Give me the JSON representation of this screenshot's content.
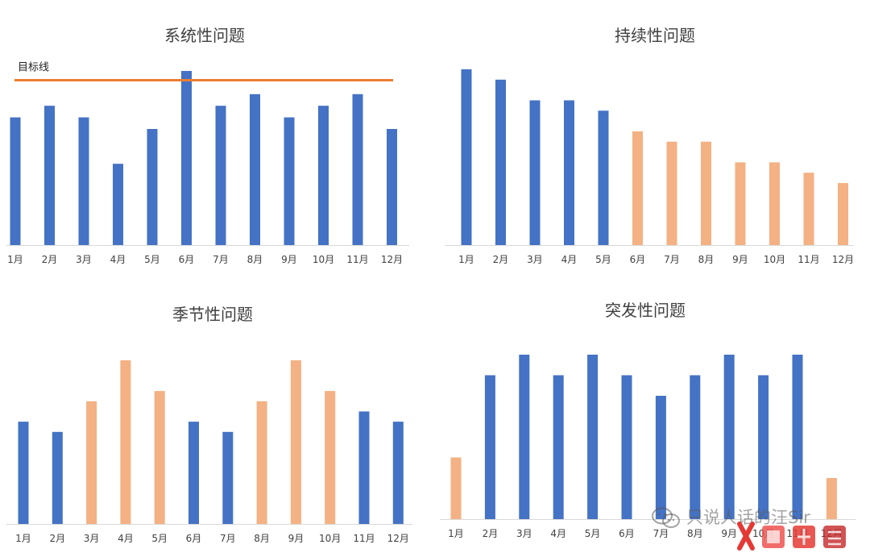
{
  "colors": {
    "blue": "#4472C4",
    "orange": "#F4B183",
    "target_line": "#ED7D31",
    "axis": "#D9D9D9",
    "text": "#404040"
  },
  "chart_data": [
    {
      "type": "bar",
      "title": "系统性问题",
      "categories": [
        "1月",
        "2月",
        "3月",
        "4月",
        "5月",
        "6月",
        "7月",
        "8月",
        "9月",
        "10月",
        "11月",
        "12月"
      ],
      "values": [
        11,
        12,
        11,
        7,
        10,
        15,
        12,
        13,
        11,
        12,
        13,
        10
      ],
      "colors": [
        "blue",
        "blue",
        "blue",
        "blue",
        "blue",
        "blue",
        "blue",
        "blue",
        "blue",
        "blue",
        "blue",
        "blue"
      ],
      "ylim": [
        0,
        15
      ],
      "target_line": {
        "label": "目标线",
        "value": 14.2
      },
      "legend": "none",
      "grid": false
    },
    {
      "type": "bar",
      "title": "持续性问题",
      "categories": [
        "1月",
        "2月",
        "3月",
        "4月",
        "5月",
        "6月",
        "7月",
        "8月",
        "9月",
        "10月",
        "11月",
        "12月"
      ],
      "values": [
        17,
        16,
        14,
        14,
        13,
        11,
        10,
        10,
        8,
        8,
        7,
        6
      ],
      "colors": [
        "blue",
        "blue",
        "blue",
        "blue",
        "blue",
        "orange",
        "orange",
        "orange",
        "orange",
        "orange",
        "orange",
        "orange"
      ],
      "ylim": [
        0,
        17
      ],
      "legend": "none",
      "grid": false
    },
    {
      "type": "bar",
      "title": "季节性问题",
      "categories": [
        "1月",
        "2月",
        "3月",
        "4月",
        "5月",
        "6月",
        "7月",
        "8月",
        "9月",
        "10月",
        "11月",
        "12月"
      ],
      "values": [
        10,
        9,
        12,
        16,
        13,
        10,
        9,
        12,
        16,
        13,
        11,
        10
      ],
      "colors": [
        "blue",
        "blue",
        "orange",
        "orange",
        "orange",
        "blue",
        "blue",
        "orange",
        "orange",
        "orange",
        "blue",
        "blue"
      ],
      "ylim": [
        0,
        16
      ],
      "legend": "none",
      "grid": false
    },
    {
      "type": "bar",
      "title": "突发性问题",
      "categories": [
        "1月",
        "2月",
        "3月",
        "4月",
        "5月",
        "6月",
        "7月",
        "8月",
        "9月",
        "10月",
        "11月",
        "12月"
      ],
      "values": [
        6,
        14,
        16,
        14,
        16,
        14,
        12,
        14,
        16,
        14,
        16,
        4
      ],
      "colors": [
        "orange",
        "blue",
        "blue",
        "blue",
        "blue",
        "blue",
        "blue",
        "blue",
        "blue",
        "blue",
        "blue",
        "orange"
      ],
      "ylim": [
        0,
        16
      ],
      "legend": "none",
      "grid": false
    }
  ],
  "watermark": {
    "text": "只说人话的汪Sir",
    "icon": "wechat-icon"
  }
}
